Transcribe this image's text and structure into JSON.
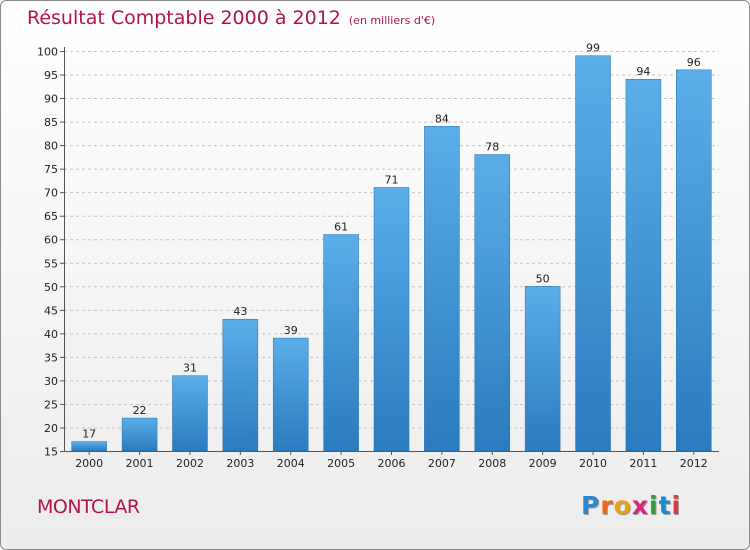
{
  "header": {
    "title": "Résultat Comptable 2000 à 2012",
    "subtitle": "(en milliers d'€)"
  },
  "footer": {
    "commune": "MONTCLAR",
    "brand_letters": [
      "P",
      "r",
      "o",
      "x",
      "i",
      "t",
      "i"
    ],
    "brand_colors": [
      "#2f86c9",
      "#e86a1a",
      "#e8a21a",
      "#d12a7a",
      "#2f9a3a",
      "#1a8ad1",
      "#e03a3a"
    ]
  },
  "colors": {
    "title": "#b3124f",
    "bar_top": "#5aaee8",
    "bar_bottom": "#2a7bbf",
    "bar_edge": "#2a6fa8"
  },
  "chart_data": {
    "type": "bar",
    "title": "Résultat Comptable 2000 à 2012",
    "xlabel": "",
    "ylabel": "",
    "categories": [
      "2000",
      "2001",
      "2002",
      "2003",
      "2004",
      "2005",
      "2006",
      "2007",
      "2008",
      "2009",
      "2010",
      "2011",
      "2012"
    ],
    "values": [
      17,
      22,
      31,
      43,
      39,
      61,
      71,
      84,
      78,
      50,
      99,
      94,
      96
    ],
    "ylim": [
      15,
      100
    ],
    "yticks": [
      15,
      20,
      25,
      30,
      35,
      40,
      45,
      50,
      55,
      60,
      65,
      70,
      75,
      80,
      85,
      90,
      95,
      100
    ],
    "grid": true,
    "legend": "none"
  }
}
